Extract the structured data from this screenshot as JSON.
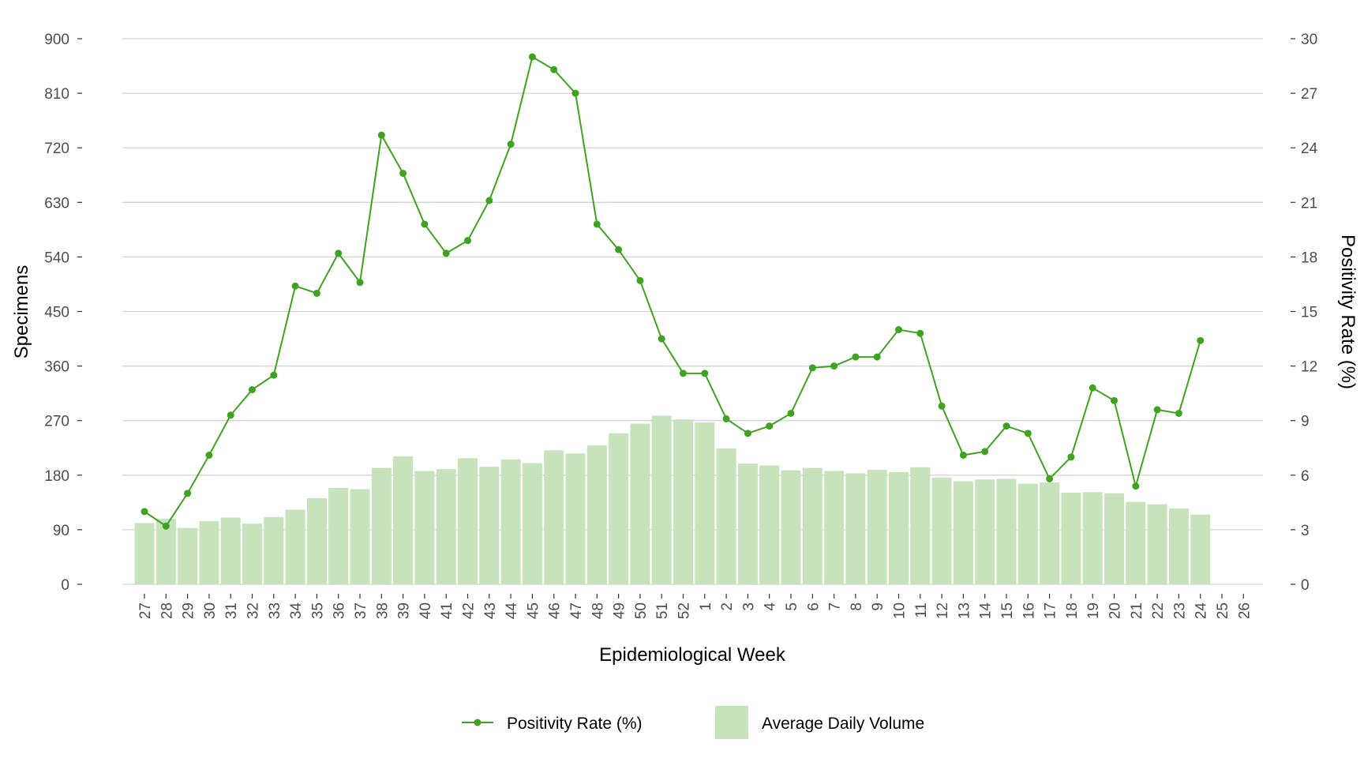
{
  "chart_data": {
    "type": "bar+line",
    "xlabel": "Epidemiological Week",
    "ylabel_left": "Specimens",
    "ylabel_right": "Positivity Rate (%)",
    "ylim_left": [
      0,
      900
    ],
    "ylim_right": [
      0,
      30
    ],
    "yticks_left": [
      0,
      90,
      180,
      270,
      360,
      450,
      540,
      630,
      720,
      810,
      900
    ],
    "yticks_right": [
      0,
      3,
      6,
      9,
      12,
      15,
      18,
      21,
      24,
      27,
      30
    ],
    "grid": "horizontal",
    "legend_position": "bottom",
    "categories": [
      "27",
      "28",
      "29",
      "30",
      "31",
      "32",
      "33",
      "34",
      "35",
      "36",
      "37",
      "38",
      "39",
      "40",
      "41",
      "42",
      "43",
      "44",
      "45",
      "46",
      "47",
      "48",
      "49",
      "50",
      "51",
      "52",
      "1",
      "2",
      "3",
      "4",
      "5",
      "6",
      "7",
      "8",
      "9",
      "10",
      "11",
      "12",
      "13",
      "14",
      "15",
      "16",
      "17",
      "18",
      "19",
      "20",
      "21",
      "22",
      "23",
      "24",
      "25",
      "26"
    ],
    "series": [
      {
        "name": "Average Daily Volume",
        "type": "bar",
        "axis": "left",
        "color": "#c6e3bb",
        "values": [
          101,
          108,
          93,
          104,
          110,
          100,
          111,
          123,
          142,
          159,
          157,
          192,
          211,
          187,
          190,
          208,
          194,
          206,
          200,
          221,
          216,
          229,
          249,
          265,
          278,
          272,
          267,
          224,
          199,
          196,
          188,
          192,
          187,
          183,
          189,
          185,
          193,
          176,
          170,
          173,
          174,
          166,
          168,
          151,
          152,
          150,
          136,
          132,
          125,
          115,
          null,
          null
        ]
      },
      {
        "name": "Positivity Rate (%)",
        "type": "line",
        "axis": "right",
        "color": "#3fa31f",
        "values": [
          4.0,
          3.2,
          5.0,
          7.1,
          9.3,
          10.7,
          11.5,
          16.4,
          16.0,
          18.2,
          16.6,
          24.7,
          22.6,
          19.8,
          18.2,
          18.9,
          21.1,
          24.2,
          29.0,
          28.3,
          27.0,
          19.8,
          18.4,
          16.7,
          13.5,
          11.6,
          11.6,
          9.1,
          8.3,
          8.7,
          9.4,
          11.9,
          12.0,
          12.5,
          12.5,
          14.0,
          13.8,
          9.8,
          7.1,
          7.3,
          8.7,
          8.3,
          5.8,
          7.0,
          10.8,
          10.1,
          5.4,
          9.6,
          9.4,
          13.4,
          null,
          null
        ]
      }
    ]
  }
}
